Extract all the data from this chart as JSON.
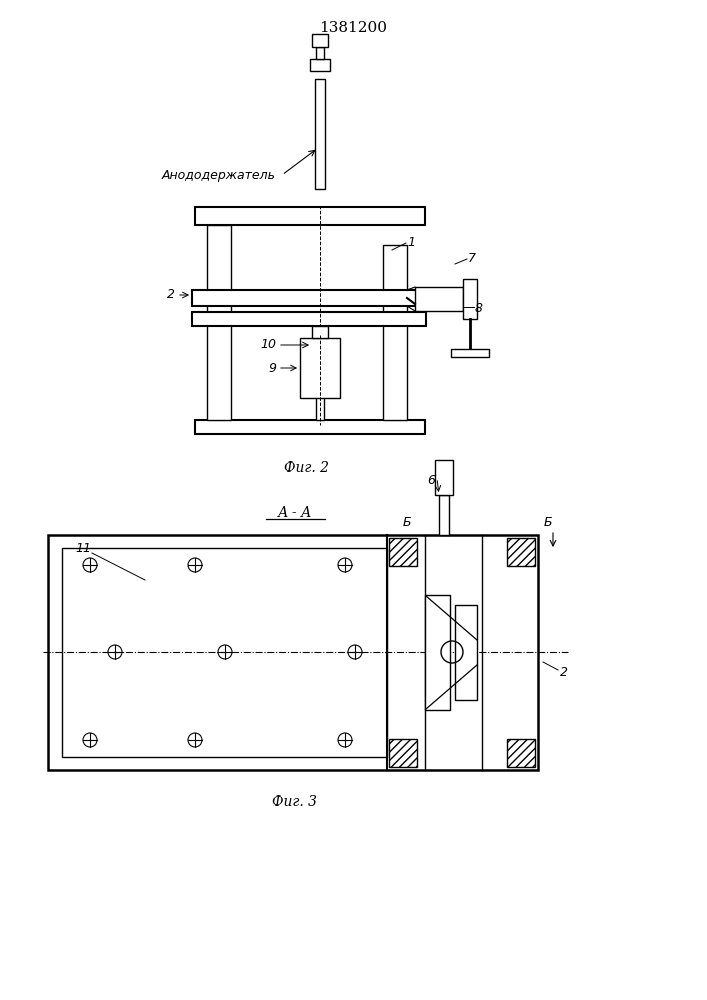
{
  "title": "1381200",
  "fig2_caption": "Фиг. 2",
  "fig3_caption": "Фиг. 3",
  "section_label": "А - А",
  "anodeholder_label": "Анододержатель",
  "bg_color": "#ffffff",
  "line_color": "#000000"
}
